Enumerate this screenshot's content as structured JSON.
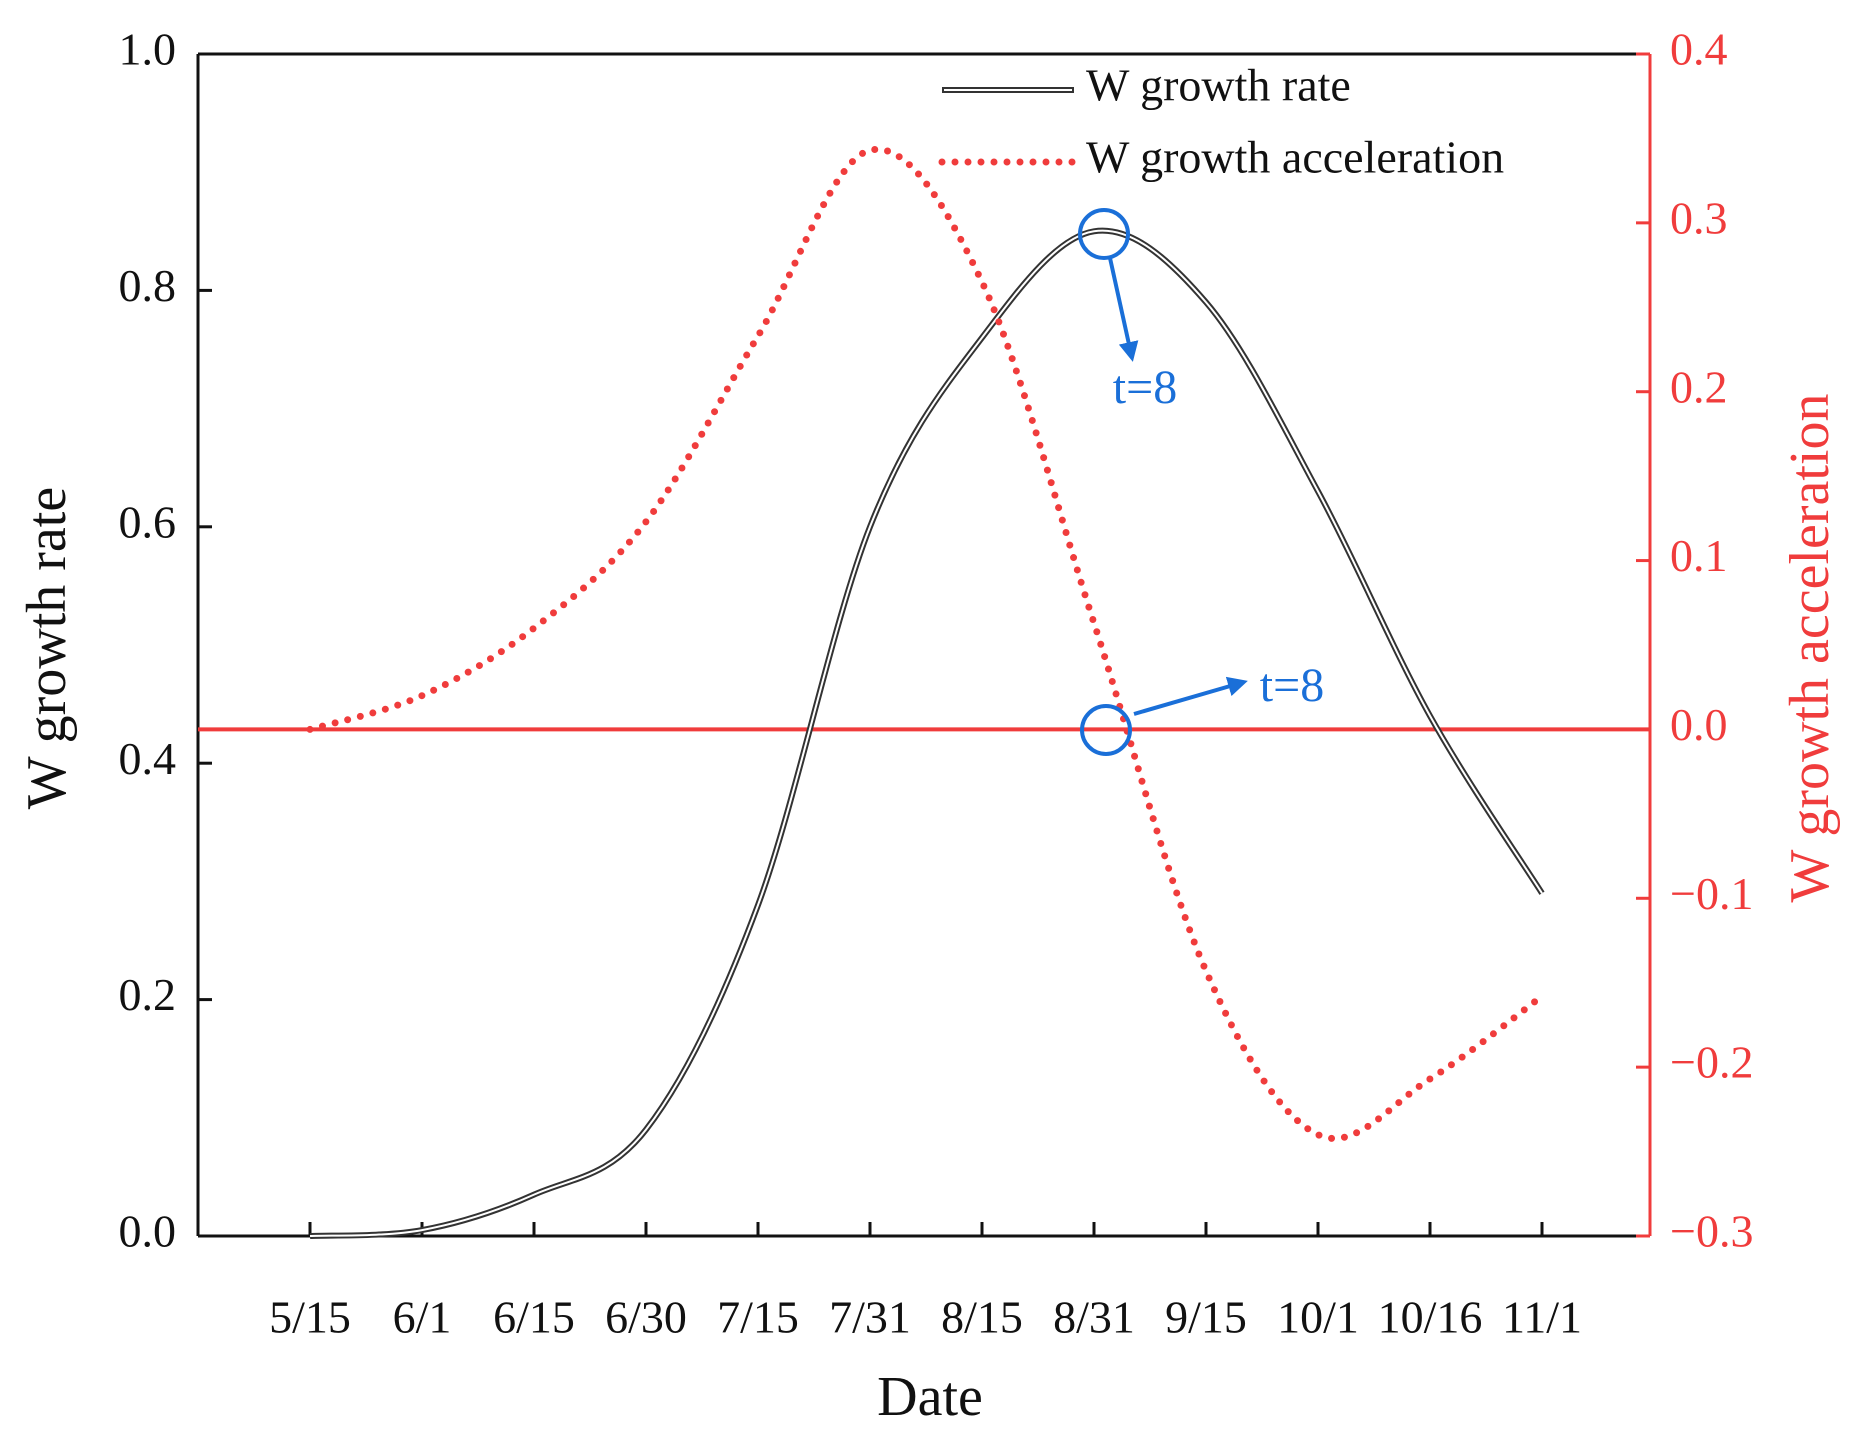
{
  "chart_data": {
    "type": "line",
    "xlabel": "Date",
    "ylabel": "W growth rate",
    "y2label": "W growth acceleration",
    "categories": [
      "5/15",
      "6/1",
      "6/15",
      "6/30",
      "7/15",
      "7/31",
      "8/15",
      "8/31",
      "9/15",
      "10/1",
      "10/16",
      "11/1"
    ],
    "series": [
      {
        "name": "W growth rate",
        "color": "#333333",
        "style": "double",
        "values": [
          0.0,
          0.005,
          0.035,
          0.09,
          0.28,
          0.6,
          0.76,
          0.85,
          0.79,
          0.63,
          0.44,
          0.29
        ]
      },
      {
        "name": "W growth acceleration",
        "color": "#f03c3c",
        "style": "dotted",
        "axis": "y2",
        "values": [
          0.0,
          0.02,
          0.06,
          0.123,
          0.233,
          0.343,
          0.265,
          0.063,
          -0.143,
          -0.24,
          -0.207,
          -0.158
        ]
      }
    ],
    "reference_line": {
      "value": 0,
      "axis": "y2",
      "color": "#f03c3c"
    },
    "ylim": [
      0,
      1
    ],
    "yticks": [
      {
        "value": 0,
        "label": "0.0"
      },
      0.2,
      0.4,
      0.6,
      0.8,
      {
        "value": 1,
        "label": "1.0"
      }
    ],
    "y2lim": [
      -0.3,
      0.4
    ],
    "y2ticks": [
      {
        "value": -0.3,
        "label": "−0.3"
      },
      {
        "value": -0.2,
        "label": "−0.2"
      },
      {
        "value": -0.1,
        "label": "−0.1"
      },
      {
        "value": 0,
        "label": "0.0"
      },
      0.1,
      0.2,
      0.3,
      0.4
    ],
    "y2color": "#f03c3c",
    "legend": "upper right",
    "annotations": [
      {
        "text": "t=8"
      },
      {
        "text": "t=8"
      }
    ],
    "annotation_color": "#1a6fd8"
  }
}
